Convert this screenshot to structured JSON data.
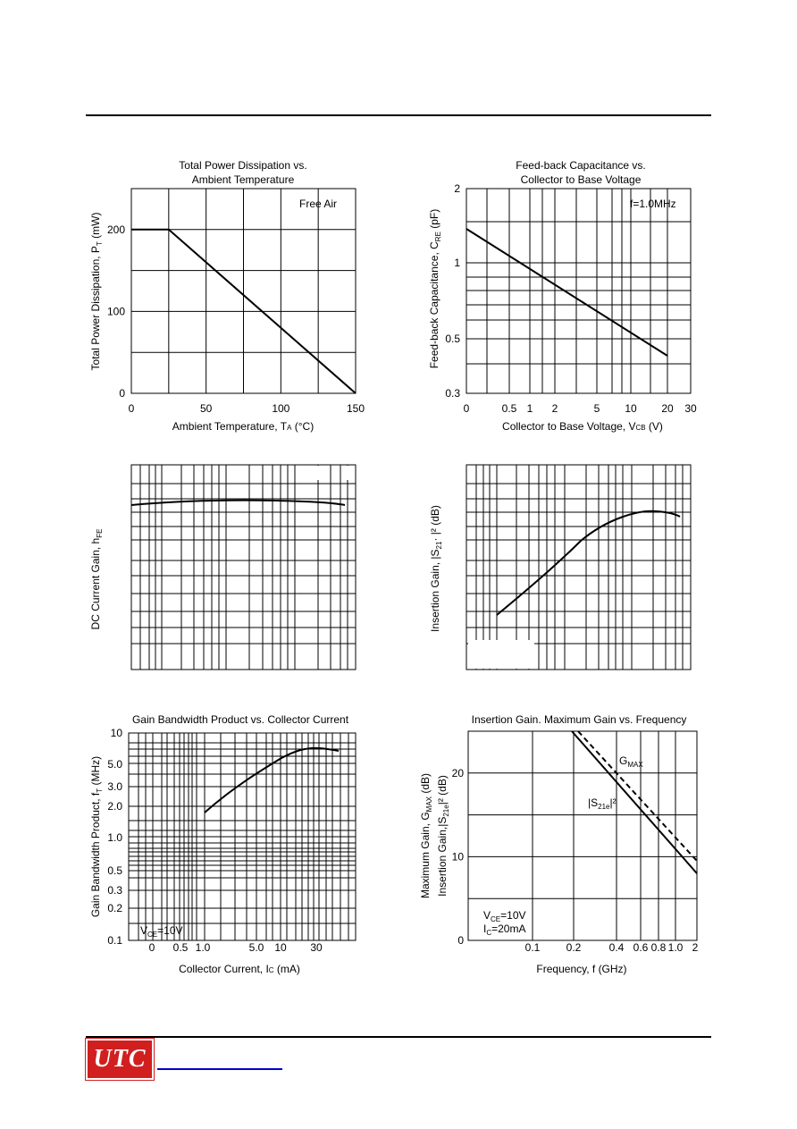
{
  "colors": {
    "line": "#000000",
    "logo_bg": "#d11f1f",
    "link": "#0000cc"
  },
  "footer": {
    "logo_text": "UTC"
  },
  "chart_data": [
    {
      "type": "line",
      "title": "Total Power Dissipation vs.",
      "title2": "Ambient Temperature",
      "xlabel": "Ambient Temperature, T",
      "xsub": "A",
      "xunit": " (°C)",
      "ylabel": "Total Power Dissipation, P",
      "ysub": "T",
      "yunit": " (mW)",
      "annotation": "Free Air",
      "xlim": [
        0,
        150
      ],
      "ylim": [
        0,
        250
      ],
      "xticks": [
        "0",
        "50",
        "100",
        "150"
      ],
      "yticks": [
        "0",
        "100",
        "200"
      ],
      "series": [
        {
          "x": [
            0,
            25,
            150
          ],
          "y": [
            200,
            200,
            0
          ]
        }
      ]
    },
    {
      "type": "line",
      "title": "Feed-back Capacitance vs.",
      "title2": "Collector to Base Voltage",
      "xlabel": "Collector to Base Voltage, V",
      "xsub": "CB",
      "xunit": " (V)",
      "ylabel": "Feed-back Capacitance, C",
      "ysub": "RE",
      "yunit": " (pF)",
      "annotation": "f=1.0MHz",
      "xticks": [
        "0",
        "0.5",
        "1",
        "2",
        "5",
        "10",
        "20",
        "30"
      ],
      "yticks": [
        "0.3",
        "0.5",
        "1",
        "2"
      ],
      "yscale": "log",
      "series": [
        {
          "x": [
            0,
            20
          ],
          "y": [
            1.38,
            0.42
          ]
        }
      ]
    },
    {
      "type": "line",
      "title": "",
      "ylabel": "DC Current Gain, h",
      "ysub": "FE",
      "series": [
        {
          "shape": "flat"
        }
      ]
    },
    {
      "type": "line",
      "title": "",
      "ylabel": "Insertion Gain, |S",
      "ysub": "21",
      "yunit": "· |² (dB)",
      "series": [
        {
          "shape": "rising"
        }
      ]
    },
    {
      "type": "line",
      "title": "Gain Bandwidth Product vs. Collector Current",
      "xlabel": "Collector Current, I",
      "xsub": "C",
      "xunit": " (mA)",
      "ylabel": "Gain Bandwidth Product, f",
      "ysub": "T",
      "yunit": " (MHz)",
      "annotation": "V",
      "annotation_sub": "CE",
      "annotation_tail": "=10V",
      "xticks": [
        "0",
        "0.5",
        "1.0",
        "5.0",
        "10",
        "30"
      ],
      "yticks": [
        "0.1",
        "0.2",
        "0.3",
        "0.5",
        "1.0",
        "2.0",
        "3.0",
        "5.0",
        "10"
      ],
      "yscale": "log",
      "series": [
        {
          "shape": "rising-saturating"
        }
      ]
    },
    {
      "type": "line",
      "title": "Insertion Gain. Maximum Gain vs. Frequency",
      "xlabel": "Frequency, f (GHz)",
      "ylabel": "Maximum Gain, G",
      "ysub": "MAX",
      "yunit": " (dB)",
      "ylabel2": "Insertion Gain,|S",
      "ysub2": "21e",
      "yunit2": "|² (dB)",
      "ylim": [
        0,
        25
      ],
      "xticks": [
        "0.1",
        "0.2",
        "0.4",
        "0.6",
        "0.8",
        "1.0",
        "2"
      ],
      "yticks": [
        "0",
        "10",
        "20"
      ],
      "labels": {
        "gmax": "G",
        "gmax_sub": "MAX",
        "s21": "|S",
        "s21_sub": "21e",
        "s21_tail": "|²"
      },
      "annotation_l1": "V",
      "annotation_l1_sub": "CE",
      "annotation_l1_tail": "=10V",
      "annotation_l2": "I",
      "annotation_l2_sub": "C",
      "annotation_l2_tail": "=20mA",
      "series": [
        {
          "name": "G",
          "style": "dashed",
          "y": [
            25,
            9.5
          ]
        },
        {
          "name": "|S",
          "style": "solid",
          "y": [
            25,
            8
          ]
        }
      ]
    }
  ]
}
